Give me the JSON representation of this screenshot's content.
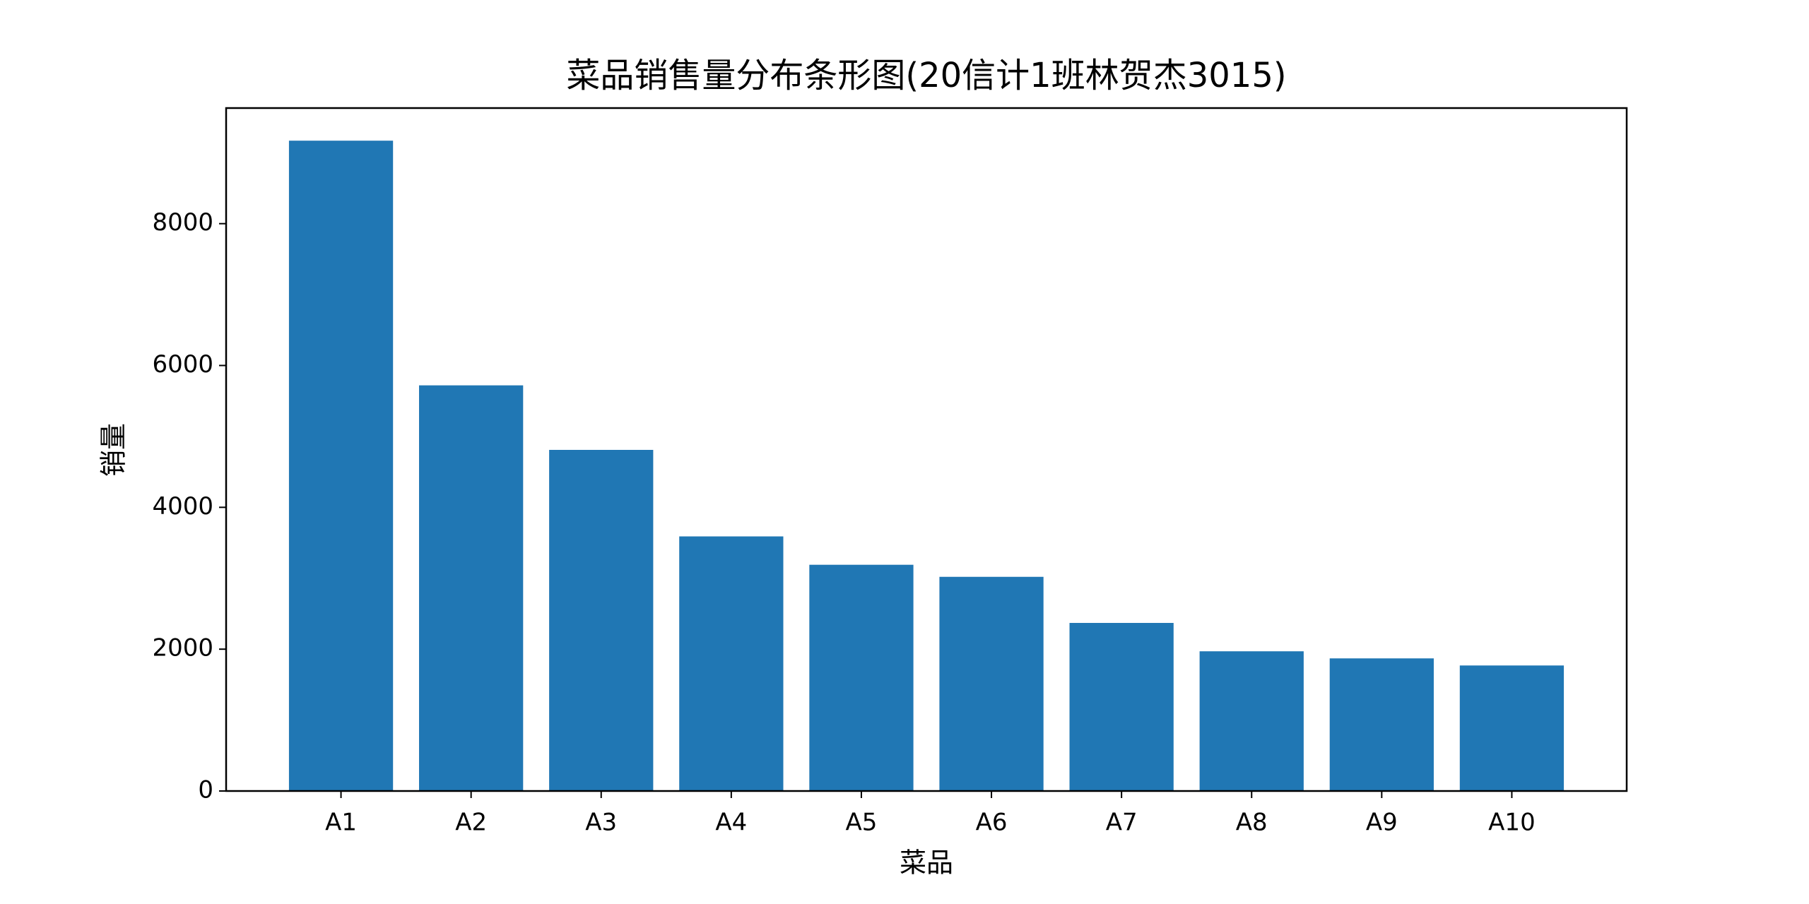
{
  "chart_data": {
    "type": "bar",
    "title": "菜品销售量分布条形图(20信计1班林贺杰3015)",
    "x_label": "菜品",
    "y_label": "销量",
    "categories": [
      "A1",
      "A2",
      "A3",
      "A4",
      "A5",
      "A6",
      "A7",
      "A8",
      "A9",
      "A10"
    ],
    "values": [
      9170,
      5720,
      4810,
      3590,
      3190,
      3020,
      2370,
      1970,
      1870,
      1770
    ],
    "color": "#2077b4",
    "ylim": [
      0,
      9630
    ],
    "yticks": [
      0,
      2000,
      4000,
      6000,
      8000
    ],
    "grid": false
  }
}
